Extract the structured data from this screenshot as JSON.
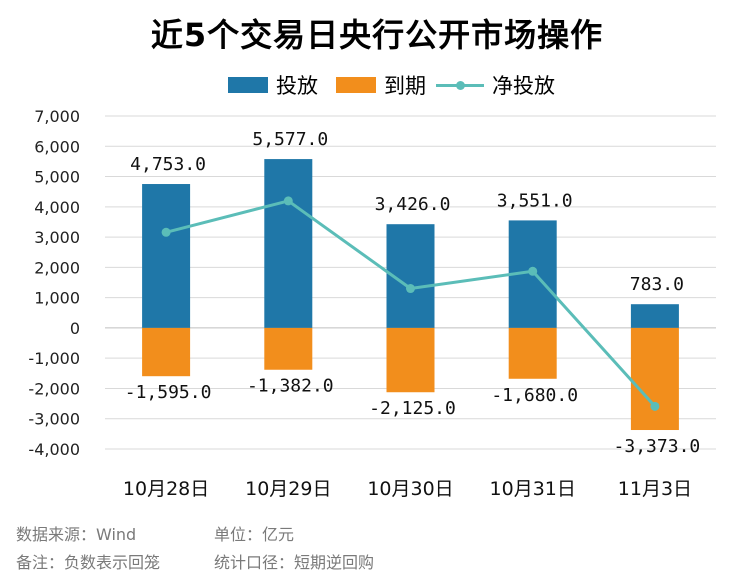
{
  "title": "近5个交易日央行公开市场操作",
  "legend": {
    "investment": "投放",
    "maturity": "到期",
    "net": "净投放"
  },
  "colors": {
    "investment": "#1F77A8",
    "maturity": "#F28E1C",
    "net": "#5BBDB8",
    "grid": "#d9d9d9",
    "footer": "#7a7a7a"
  },
  "footer": {
    "source": "数据来源：Wind",
    "unit": "单位：亿元",
    "note": "备注：负数表示回笼",
    "scope": "统计口径：短期逆回购"
  },
  "chart_data": {
    "type": "bar",
    "title": "近5个交易日央行公开市场操作",
    "categories": [
      "10月28日",
      "10月29日",
      "10月30日",
      "10月31日",
      "11月3日"
    ],
    "series": [
      {
        "name": "投放",
        "kind": "bar",
        "values": [
          4753,
          5577,
          3426,
          3551,
          783
        ],
        "labels": [
          "4,753.0",
          "5,577.0",
          "3,426.0",
          "3,551.0",
          "783.0"
        ]
      },
      {
        "name": "到期",
        "kind": "bar",
        "values": [
          -1595,
          -1382,
          -2125,
          -1680,
          -3373
        ],
        "labels": [
          "-1,595.0",
          "-1,382.0",
          "-2,125.0",
          "-1,680.0",
          "-3,373.0"
        ]
      },
      {
        "name": "净投放",
        "kind": "line",
        "values": [
          3158,
          4195,
          1301,
          1871,
          -2590
        ]
      }
    ],
    "ylim": [
      -4000,
      7000
    ],
    "yticks": [
      7000,
      6000,
      5000,
      4000,
      3000,
      2000,
      1000,
      0,
      -1000,
      -2000,
      -3000,
      -4000
    ],
    "ytick_labels": [
      "7,000",
      "6,000",
      "5,000",
      "4,000",
      "3,000",
      "2,000",
      "1,000",
      "0",
      "-1,000",
      "-2,000",
      "-3,000",
      "-4,000"
    ],
    "grid": true,
    "legend_position": "top",
    "xlabel": "",
    "ylabel": ""
  }
}
